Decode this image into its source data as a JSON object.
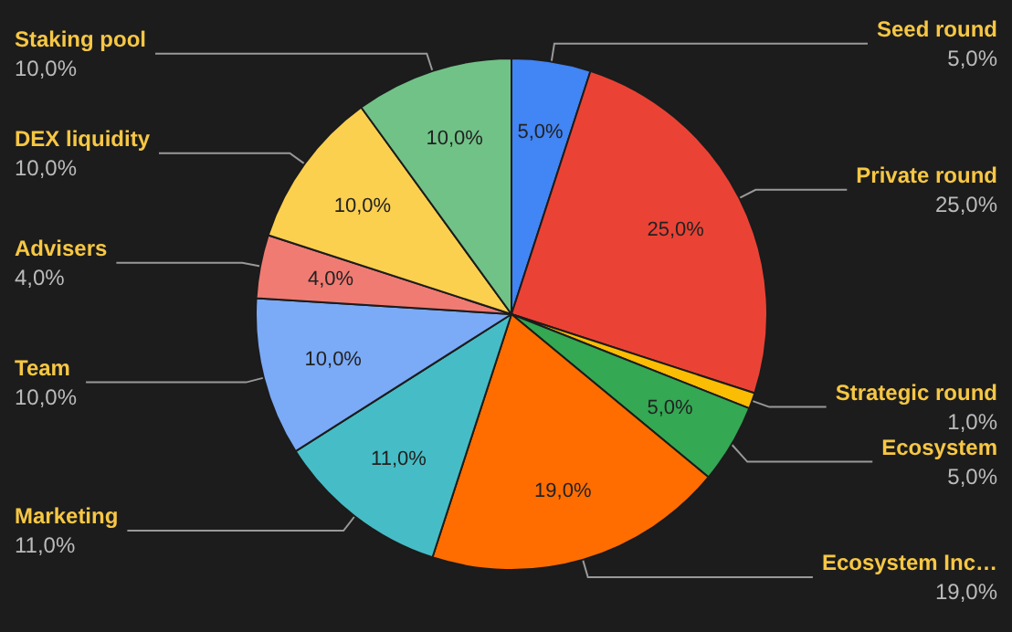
{
  "chart_data": {
    "type": "pie",
    "categories": [
      "Seed round",
      "Private round",
      "Strategic round",
      "Ecosystem",
      "Ecosystem Inc…",
      "Marketing",
      "Team",
      "Advisers",
      "DEX liquidity",
      "Staking pool"
    ],
    "values": [
      5,
      25,
      1,
      5,
      19,
      11,
      10,
      4,
      10,
      10
    ],
    "value_labels": [
      "5,0%",
      "25,0%",
      "1,0%",
      "5,0%",
      "19,0%",
      "11,0%",
      "10,0%",
      "4,0%",
      "10,0%",
      "10,0%"
    ],
    "colors": [
      "#4285f4",
      "#ea4335",
      "#fbbc04",
      "#34a853",
      "#ff6d01",
      "#46bdc6",
      "#7baaf7",
      "#f07b72",
      "#fcd04f",
      "#71c287"
    ],
    "legend": false
  }
}
